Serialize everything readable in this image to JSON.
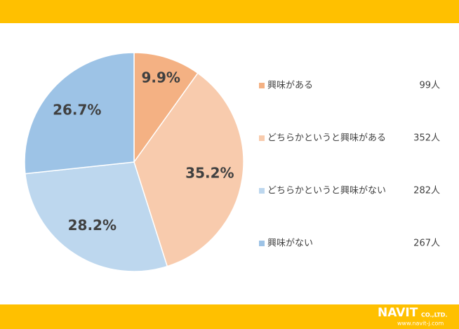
{
  "chart_data": {
    "type": "pie",
    "categories": [
      "興味がある",
      "どちらかというと興味がある",
      "どちらかというと興味がない",
      "興味がない"
    ],
    "values": [
      9.9,
      35.2,
      28.2,
      26.7
    ],
    "value_labels": [
      "9.9%",
      "35.2%",
      "28.2%",
      "26.7%"
    ],
    "colors": [
      "#f4b183",
      "#f8cbad",
      "#bdd7ee",
      "#9dc3e6"
    ],
    "count_labels": [
      "99人",
      "352人",
      "282人",
      "267人"
    ]
  },
  "footer": {
    "logo": "NAVIT",
    "company": "CO.,LTD.",
    "url": "www.navit-j.com"
  }
}
